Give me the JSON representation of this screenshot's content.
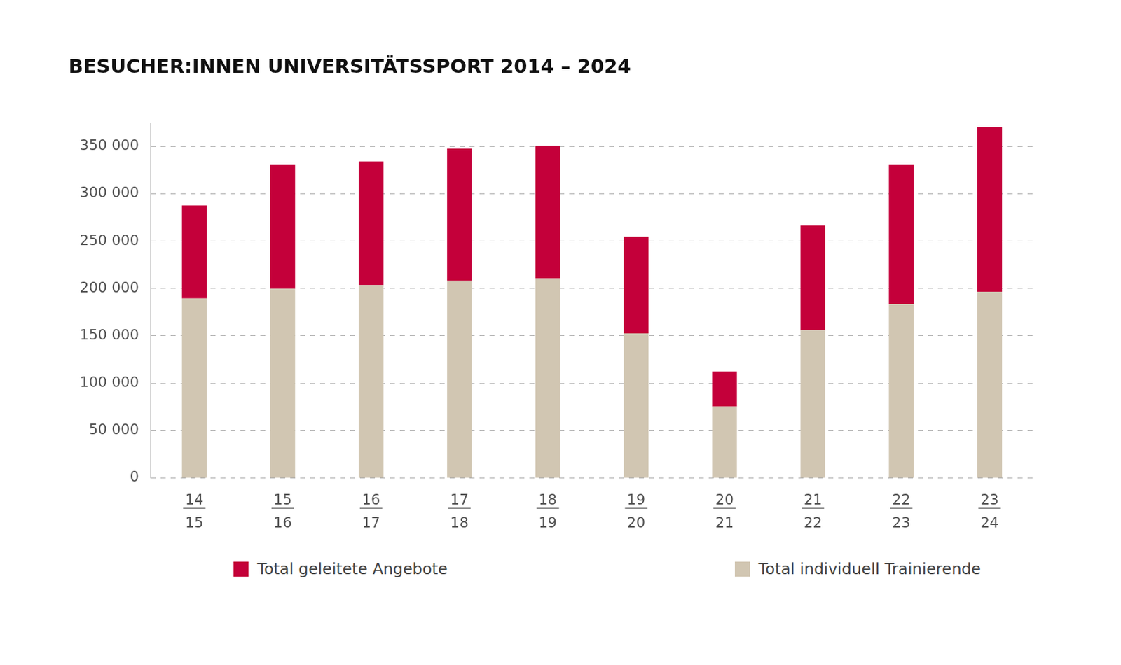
{
  "chart_data": {
    "type": "bar",
    "title": "BESUCHER:INNEN UNIVERSITÄTSSPORT 2014 – 2024",
    "categories": [
      [
        "14",
        "15"
      ],
      [
        "15",
        "16"
      ],
      [
        "16",
        "17"
      ],
      [
        "17",
        "18"
      ],
      [
        "18",
        "19"
      ],
      [
        "19",
        "20"
      ],
      [
        "20",
        "21"
      ],
      [
        "21",
        "22"
      ],
      [
        "22",
        "23"
      ],
      [
        "23",
        "24"
      ]
    ],
    "series": [
      {
        "name": "Total individuell Trainierende",
        "color": "#d1c6b2",
        "values": [
          189500,
          199700,
          203600,
          208300,
          210700,
          152500,
          75500,
          155700,
          183200,
          196500
        ]
      },
      {
        "name": "Total geleitete Angebote",
        "color": "#c4003a",
        "values": [
          98200,
          131300,
          130500,
          139200,
          139900,
          102200,
          36900,
          110800,
          147800,
          173800
        ]
      }
    ],
    "stacked": true,
    "ylim": [
      0,
      375000
    ],
    "yticks": [
      0,
      {
        "value": 50000,
        "label": "50 000"
      },
      {
        "value": 100000,
        "label": "100 000"
      },
      {
        "value": 150000,
        "label": "150 000"
      },
      {
        "value": 200000,
        "label": "200 000"
      },
      {
        "value": 250000,
        "label": "250 000"
      },
      {
        "value": 300000,
        "label": "300 000"
      },
      {
        "value": 350000,
        "label": "350 000"
      }
    ],
    "grid": true,
    "legend": "bottom"
  }
}
